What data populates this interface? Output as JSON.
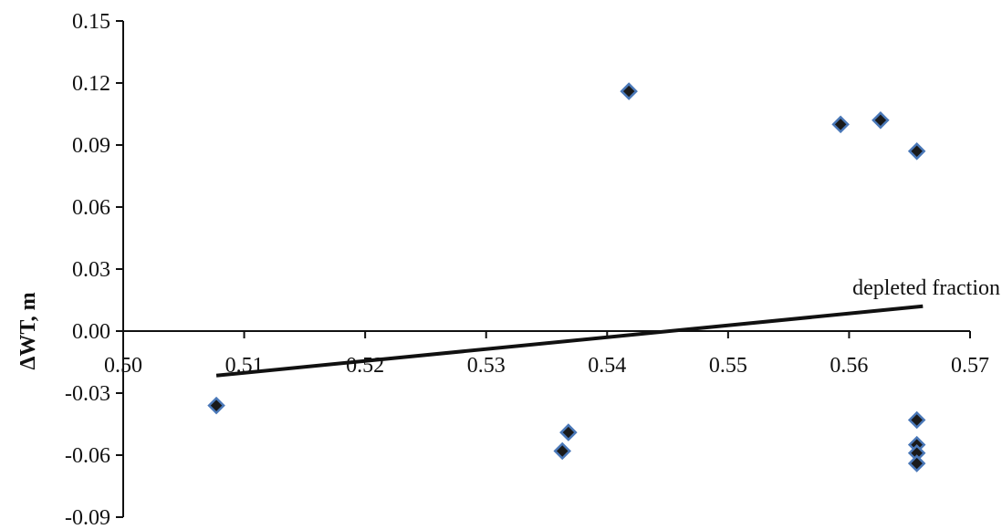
{
  "chart_data": {
    "type": "scatter",
    "title": "",
    "xlabel": "",
    "ylabel": "ΔWT, m",
    "xlim": [
      0.5,
      0.57
    ],
    "ylim": [
      -0.09,
      0.15
    ],
    "x_ticks": [
      "0.50",
      "0.51",
      "0.52",
      "0.53",
      "0.54",
      "0.55",
      "0.56",
      "0.57"
    ],
    "y_ticks": [
      "0.15",
      "0.12",
      "0.09",
      "0.06",
      "0.03",
      "0.00",
      "-0.03",
      "-0.06",
      "-0.09"
    ],
    "grid": false,
    "legend": "none",
    "marker": "diamond",
    "marker_color": "#1a1a1a",
    "marker_edge_color": "#4a78b8",
    "points": [
      {
        "x": 0.5077,
        "y": -0.036
      },
      {
        "x": 0.5363,
        "y": -0.058
      },
      {
        "x": 0.5368,
        "y": -0.049
      },
      {
        "x": 0.5418,
        "y": 0.116
      },
      {
        "x": 0.5593,
        "y": 0.1
      },
      {
        "x": 0.5626,
        "y": 0.102
      },
      {
        "x": 0.5656,
        "y": 0.087
      },
      {
        "x": 0.5656,
        "y": -0.043
      },
      {
        "x": 0.5656,
        "y": -0.055
      },
      {
        "x": 0.5656,
        "y": -0.059
      },
      {
        "x": 0.5656,
        "y": -0.064
      }
    ],
    "trendline": {
      "label": "depleted fraction",
      "color": "#111111",
      "points": [
        {
          "x": 0.5077,
          "y": -0.0215
        },
        {
          "x": 0.5661,
          "y": 0.012
        }
      ]
    }
  }
}
